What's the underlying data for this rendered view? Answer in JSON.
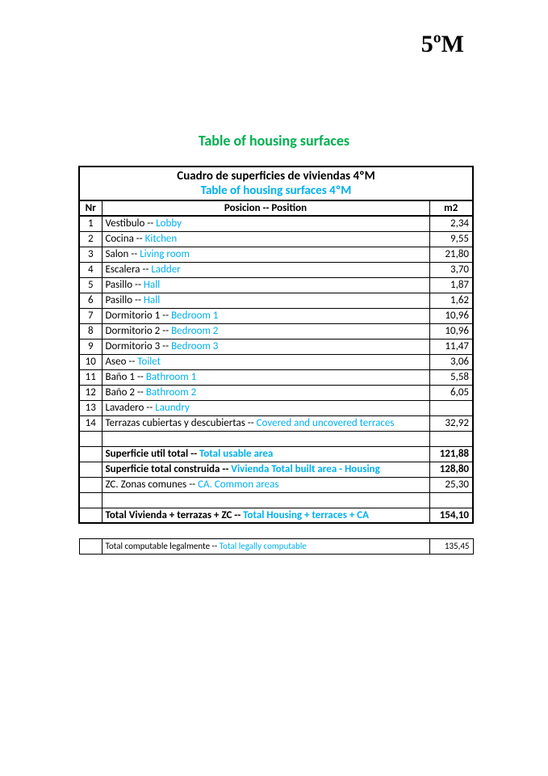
{
  "page_header": "5ºM",
  "main_title": "Table of housing surfaces",
  "table": {
    "title_es": "Cuadro de superficies de viviendas 4ºM",
    "title_en": "Table of housing surfaces 4ºM",
    "columns": {
      "nr": "Nr",
      "pos": "Posicion -- Position",
      "m2": "m2"
    },
    "rows": [
      {
        "nr": "1",
        "es": "Vestibulo -- ",
        "en": "Lobby",
        "m2": "2,34"
      },
      {
        "nr": "2",
        "es": "Cocina --  ",
        "en": "Kitchen",
        "m2": "9,55"
      },
      {
        "nr": "3",
        "es": "Salon -- ",
        "en": "Living room",
        "m2": "21,80"
      },
      {
        "nr": "4",
        "es": "Escalera -- ",
        "en": "Ladder",
        "m2": "3,70"
      },
      {
        "nr": "5",
        "es": "Pasillo -- ",
        "en": "Hall",
        "m2": "1,87"
      },
      {
        "nr": "6",
        "es": "Pasillo -- ",
        "en": "Hall",
        "m2": "1,62"
      },
      {
        "nr": "7",
        "es": "Dormitorio 1 -- ",
        "en": "Bedroom 1",
        "m2": "10,96"
      },
      {
        "nr": "8",
        "es": "Dormitorio 2 -- ",
        "en": "Bedroom 2",
        "m2": "10,96"
      },
      {
        "nr": "9",
        "es": "Dormitorio 3 -- ",
        "en": "Bedroom 3",
        "m2": "11,47"
      },
      {
        "nr": "10",
        "es": "Aseo -- ",
        "en": "Toilet",
        "m2": "3,06"
      },
      {
        "nr": "11",
        "es": "Baño 1 -- ",
        "en": "Bathroom 1",
        "m2": "5,58"
      },
      {
        "nr": "12",
        "es": "Baño 2 -- ",
        "en": "Bathroom 2",
        "m2": "6,05"
      },
      {
        "nr": "13",
        "es": "Lavadero -- ",
        "en": "Laundry",
        "m2": ""
      },
      {
        "nr": "14",
        "es": "Terrazas cubiertas y descubiertas -- ",
        "en": "Covered and uncovered terraces",
        "m2": "32,92"
      }
    ],
    "summary": [
      {
        "es": "Superficie util total -- ",
        "en": "Total usable area",
        "m2": "121,88",
        "bold": true
      },
      {
        "es": "Superficie total construida -- ",
        "en": "Vivienda Total built area - Housing",
        "m2": "128,80",
        "bold": true
      },
      {
        "es": "ZC. Zonas comunes  -- ",
        "en": "CA. Common areas",
        "m2": "25,30",
        "bold": false
      }
    ],
    "total": {
      "es": "Total Vivienda + terrazas + ZC  -- ",
      "en": "Total Housing + terraces + CA",
      "m2": "154,10"
    },
    "footer": {
      "es": "Total computable legalmente -- ",
      "en": "Total legally computable",
      "m2": "135,45"
    }
  },
  "colors": {
    "green": "#00b050",
    "blue": "#00b0f0",
    "black": "#000000",
    "white": "#ffffff"
  }
}
